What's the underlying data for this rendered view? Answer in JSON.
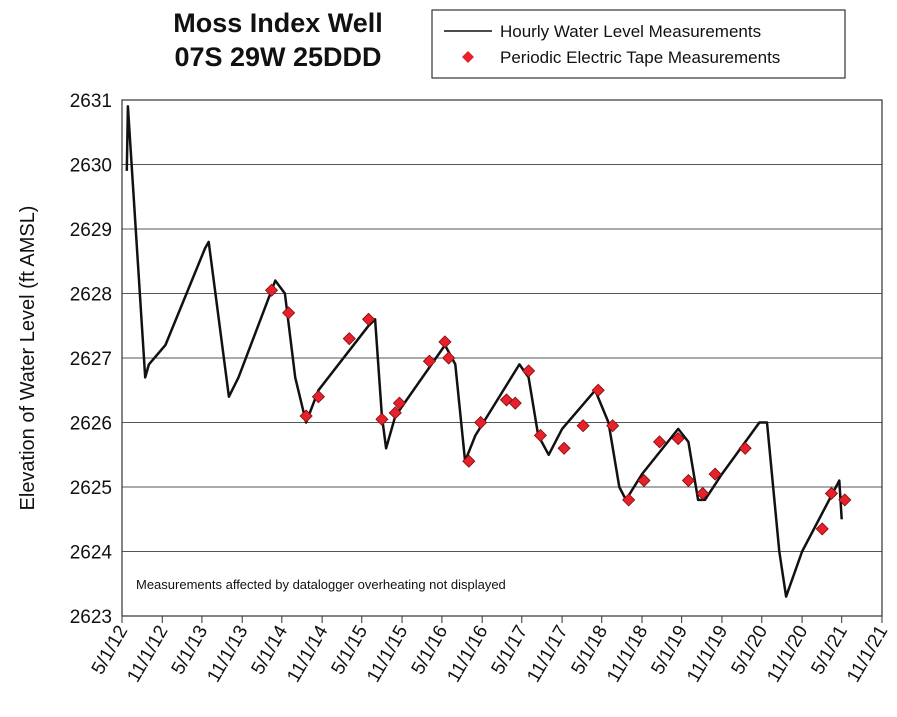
{
  "chart_data": {
    "type": "line",
    "title": [
      "Moss Index Well",
      "07S 29W 25DDD"
    ],
    "y_label": "Elevation of Water Level (ft AMSL)",
    "annotation": "Measurements affected by datalogger overheating not displayed",
    "xlim": [
      "5/1/12",
      "11/1/21"
    ],
    "xticks": [
      "5/1/12",
      "11/1/12",
      "5/1/13",
      "11/1/13",
      "5/1/14",
      "11/1/14",
      "5/1/15",
      "11/1/15",
      "5/1/16",
      "11/1/16",
      "5/1/17",
      "11/1/17",
      "5/1/18",
      "11/1/18",
      "5/1/19",
      "11/1/19",
      "5/1/20",
      "11/1/20",
      "5/1/21",
      "11/1/21"
    ],
    "ylim": [
      2623,
      2631
    ],
    "yticks": [
      2623,
      2624,
      2625,
      2626,
      2627,
      2628,
      2629,
      2630,
      2631
    ],
    "grid": true,
    "series": [
      {
        "name": "Hourly Water Level Measurements",
        "type": "line",
        "color": "#111111",
        "x": [
          "5/23/12",
          "5/28/12",
          "8/15/12",
          "9/1/12",
          "11/15/12",
          "5/15/13",
          "6/1/13",
          "9/1/13",
          "10/15/13",
          "4/1/14",
          "5/15/14",
          "7/1/14",
          "8/20/14",
          "10/15/14",
          "6/1/15",
          "7/1/15",
          "8/1/15",
          "8/20/15",
          "10/1/15",
          "5/15/16",
          "7/1/16",
          "8/15/16",
          "10/1/16",
          "4/20/17",
          "6/1/17",
          "7/15/17",
          "9/1/17",
          "11/1/17",
          "4/1/18",
          "6/1/18",
          "7/20/18",
          "8/20/18",
          "11/1/18",
          "4/15/19",
          "6/1/19",
          "7/15/19",
          "8/15/19",
          "11/1/19",
          "4/20/20",
          "5/25/20",
          "7/20/20",
          "8/20/20",
          "11/1/20",
          "4/20/21",
          "5/1/21"
        ],
        "values": [
          2629.9,
          2630.9,
          2626.7,
          2626.9,
          2627.2,
          2628.7,
          2628.8,
          2626.4,
          2626.7,
          2628.2,
          2628.0,
          2626.7,
          2626.0,
          2626.5,
          2627.5,
          2627.6,
          2626.1,
          2625.6,
          2626.1,
          2627.2,
          2626.9,
          2625.4,
          2625.8,
          2626.9,
          2626.7,
          2625.8,
          2625.5,
          2625.9,
          2626.5,
          2626.0,
          2625.0,
          2624.8,
          2625.2,
          2625.9,
          2625.7,
          2624.8,
          2624.8,
          2625.2,
          2626.0,
          2626.0,
          2624.0,
          2623.3,
          2624.0,
          2625.1,
          2624.5
        ]
      },
      {
        "name": "Periodic Electric Tape Measurements",
        "type": "scatter",
        "color": "#e8202a",
        "x": [
          "3/15/14",
          "6/1/14",
          "8/20/14",
          "10/15/14",
          "3/5/15",
          "6/1/15",
          "8/1/15",
          "10/1/15",
          "10/20/15",
          "3/5/16",
          "5/15/16",
          "6/1/16",
          "9/1/16",
          "10/25/16",
          "2/20/17",
          "4/1/17",
          "6/1/17",
          "7/25/17",
          "11/10/17",
          "2/5/18",
          "4/15/18",
          "6/20/18",
          "9/1/18",
          "11/10/18",
          "1/20/19",
          "4/15/19",
          "6/1/19",
          "8/5/19",
          "10/1/19",
          "2/15/20",
          "2/1/21",
          "3/15/21",
          "5/15/21"
        ],
        "values": [
          2628.05,
          2627.7,
          2626.1,
          2626.4,
          2627.3,
          2627.6,
          2626.05,
          2626.15,
          2626.3,
          2626.95,
          2627.25,
          2627.0,
          2625.4,
          2626.0,
          2626.35,
          2626.3,
          2626.8,
          2625.8,
          2625.6,
          2625.95,
          2626.5,
          2625.95,
          2624.8,
          2625.1,
          2625.7,
          2625.75,
          2625.1,
          2624.9,
          2625.2,
          2625.6,
          2624.35,
          2624.9,
          2624.8
        ]
      }
    ]
  }
}
